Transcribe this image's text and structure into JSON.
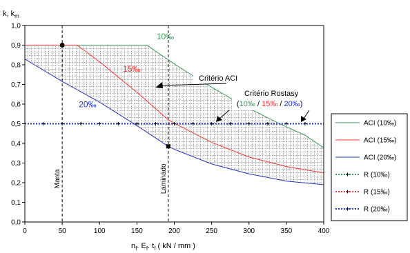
{
  "chart_data": {
    "type": "line",
    "ylabel": "k, km",
    "ylabel_main": "k, k",
    "ylabel_sub": "m",
    "xlabel": {
      "n": "n",
      "sub1": "f",
      "e": ". E",
      "sub2": "f",
      "t": ". t",
      "sub3": "f",
      "rest": " ( kN / mm )"
    },
    "xlim": [
      0,
      400
    ],
    "ylim": [
      0,
      1.0
    ],
    "x_ticks": [
      0,
      50,
      100,
      150,
      200,
      250,
      300,
      350,
      400
    ],
    "y_ticks": [
      "0,0",
      "0,1",
      "0,2",
      "0,3",
      "0,4",
      "0,5",
      "0,6",
      "0,7",
      "0,8",
      "0,9",
      "1,0"
    ],
    "series": [
      {
        "name": "ACI (10‰)",
        "color": "#3a9a5b",
        "style": "solid",
        "x": [
          0,
          50,
          100,
          150,
          164,
          175,
          200,
          225,
          250,
          275,
          300,
          325,
          350,
          375,
          400
        ],
        "y": [
          0.9,
          0.9,
          0.9,
          0.9,
          0.9,
          0.869,
          0.805,
          0.744,
          0.686,
          0.631,
          0.579,
          0.53,
          0.484,
          0.442,
          0.378
        ]
      },
      {
        "name": "ACI (15‰)",
        "color": "#ff3333",
        "style": "solid",
        "x": [
          0,
          50,
          70,
          100,
          150,
          192,
          200,
          250,
          300,
          350,
          400
        ],
        "y": [
          0.9,
          0.9,
          0.9,
          0.815,
          0.66,
          0.52,
          0.503,
          0.405,
          0.33,
          0.282,
          0.25
        ]
      },
      {
        "name": "ACI (20‰)",
        "color": "#2233cc",
        "style": "solid",
        "x": [
          0,
          50,
          100,
          150,
          192,
          200,
          250,
          300,
          350,
          400
        ],
        "y": [
          0.83,
          0.715,
          0.61,
          0.49,
          0.385,
          0.37,
          0.295,
          0.245,
          0.208,
          0.19
        ]
      },
      {
        "name": "R (10‰)",
        "color": "#3a9a5b",
        "style": "dotted",
        "x": [
          0,
          25,
          50,
          75,
          100,
          125,
          150,
          175,
          200,
          225,
          250,
          275,
          300,
          325,
          350,
          375,
          400
        ],
        "y": [
          0.5,
          0.5,
          0.5,
          0.5,
          0.5,
          0.5,
          0.5,
          0.5,
          0.5,
          0.5,
          0.5,
          0.5,
          0.5,
          0.5,
          0.5,
          0.5,
          0.5
        ]
      },
      {
        "name": "R (15‰)",
        "color": "#ff3333",
        "style": "dotted",
        "x": [
          0,
          25,
          50,
          75,
          100,
          125,
          150,
          175,
          200,
          225,
          250,
          275,
          300,
          325,
          350,
          375,
          400
        ],
        "y": [
          0.5,
          0.5,
          0.5,
          0.5,
          0.5,
          0.5,
          0.5,
          0.5,
          0.5,
          0.5,
          0.5,
          0.5,
          0.5,
          0.5,
          0.5,
          0.5,
          0.5
        ]
      },
      {
        "name": "R (20‰)",
        "color": "#2233cc",
        "style": "dotted",
        "x": [
          0,
          25,
          50,
          75,
          100,
          125,
          150,
          175,
          200,
          225,
          250,
          275,
          300,
          325,
          350,
          375,
          400
        ],
        "y": [
          0.5,
          0.5,
          0.5,
          0.5,
          0.5,
          0.5,
          0.5,
          0.5,
          0.5,
          0.5,
          0.5,
          0.5,
          0.5,
          0.5,
          0.5,
          0.5,
          0.5
        ]
      }
    ],
    "vertical_lines": [
      {
        "x": 50,
        "label": "Manta"
      },
      {
        "x": 192,
        "label": "Laminado"
      }
    ],
    "markers": [
      {
        "x": 50,
        "y": 0.9,
        "shape": "circle"
      },
      {
        "x": 192,
        "y": 0.385,
        "shape": "square"
      }
    ],
    "curve_labels": [
      {
        "text": "10‰",
        "color": "#3a9a5b",
        "x": 188,
        "y": 0.93
      },
      {
        "text": "15‰",
        "color": "#ff3333",
        "x": 143,
        "y": 0.765
      },
      {
        "text": "20‰",
        "color": "#2233cc",
        "x": 84,
        "y": 0.585
      }
    ],
    "annotations": {
      "aci_label": "Critério ACI",
      "rostasy_label": "Critério Rostasy",
      "rostasy_open": "(",
      "rostasy_10": "10‰",
      "rostasy_sep1": " / ",
      "rostasy_15": "15‰",
      "rostasy_sep2": " / ",
      "rostasy_20": "20‰",
      "rostasy_close": ")"
    },
    "legend_position": "right",
    "grid": false
  }
}
